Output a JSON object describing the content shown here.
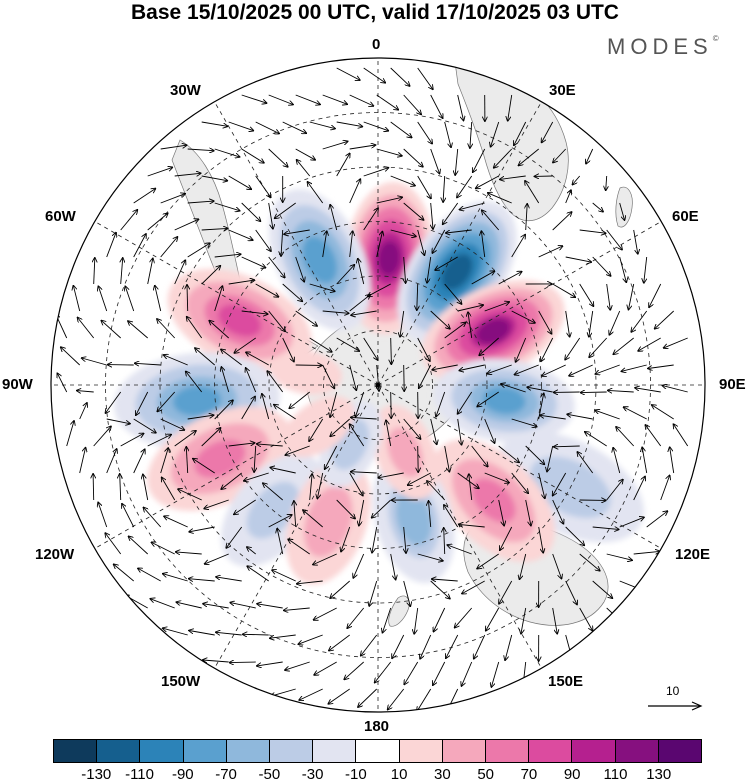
{
  "title": "Base 15/10/2025 00 UTC, valid 17/10/2025 03 UTC",
  "brand": "MODES",
  "brand_mark": "©",
  "longitude_labels": {
    "lon_0": "0",
    "lon_30e": "30E",
    "lon_60e": "60E",
    "lon_90e": "90E",
    "lon_120e": "120E",
    "lon_150e": "150E",
    "lon_180": "180",
    "lon_150w": "150W",
    "lon_120w": "120W",
    "lon_90w": "90W",
    "lon_60w": "60W",
    "lon_30w": "30W"
  },
  "vector_scale_label": "10",
  "colorbar": {
    "colors": [
      "#0e3a5c",
      "#155f8e",
      "#2c83b8",
      "#5aa0cf",
      "#8fb8dc",
      "#bccce6",
      "#e2e4f1",
      "#ffffff",
      "#fbd6d6",
      "#f5a8bc",
      "#ec78aa",
      "#dc4b9f",
      "#b5208f",
      "#86107f",
      "#5a0670"
    ],
    "ticks": [
      "-130",
      "-110",
      "-90",
      "-70",
      "-50",
      "-30",
      "-10",
      "10",
      "30",
      "50",
      "70",
      "90",
      "110",
      "130"
    ]
  },
  "anomaly_centers": [
    {
      "lon": 5,
      "lat": -55,
      "value": 115
    },
    {
      "lon": 35,
      "lat": -52,
      "value": -125
    },
    {
      "lon": 65,
      "lat": -55,
      "value": 110
    },
    {
      "lon": 97,
      "lat": -55,
      "value": -75
    },
    {
      "lon": 118,
      "lat": -30,
      "value": -45
    },
    {
      "lon": 135,
      "lat": -45,
      "value": 60
    },
    {
      "lon": 165,
      "lat": -52,
      "value": -50
    },
    {
      "lon": 158,
      "lat": -70,
      "value": 40
    },
    {
      "lon": -25,
      "lat": -52,
      "value": -85
    },
    {
      "lon": -65,
      "lat": -48,
      "value": 75
    },
    {
      "lon": -95,
      "lat": -40,
      "value": -75
    },
    {
      "lon": -115,
      "lat": -42,
      "value": 60
    },
    {
      "lon": -140,
      "lat": -45,
      "value": -40
    },
    {
      "lon": -160,
      "lat": -50,
      "value": 45
    },
    {
      "lon": -155,
      "lat": -72,
      "value": -35
    },
    {
      "lon": -125,
      "lat": -70,
      "value": 25
    },
    {
      "lon": -80,
      "lat": -70,
      "value": 20
    }
  ]
}
